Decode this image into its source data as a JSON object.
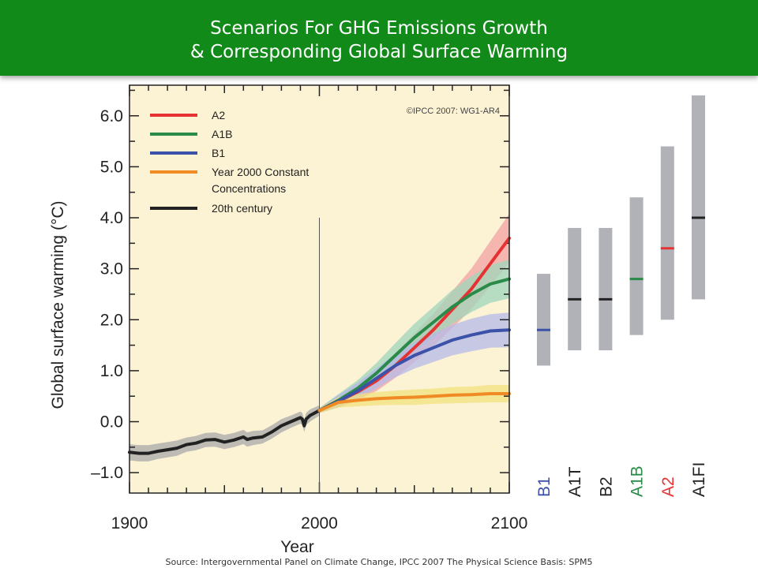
{
  "header": {
    "title_line1": "Scenarios For GHG Emissions Growth",
    "title_line2": "& Corresponding Global Surface Warming"
  },
  "footer": {
    "source": "Source: Intergovernmental Panel on Climate Change, IPCC 2007 The Physical Science Basis: SPM5"
  },
  "chart_data": [
    {
      "type": "line",
      "xlabel": "Year",
      "ylabel": "Global surface warming (°C)",
      "xlim": [
        1900,
        2100
      ],
      "ylim": [
        -1.4,
        6.6
      ],
      "x_ticks": [
        "1900",
        "2000",
        "2100"
      ],
      "y_ticks": [
        "6.0",
        "5.0",
        "4.0",
        "3.0",
        "2.0",
        "1.0",
        "0.0",
        "–1.0"
      ],
      "annotation": "©IPCC  2007: WG1-AR4",
      "background": "#fcf2d4",
      "reference_line_year": 2000,
      "legend_position": "top-left",
      "legend": [
        {
          "label": "A2",
          "color": "#e63232"
        },
        {
          "label": "A1B",
          "color": "#2a8a48"
        },
        {
          "label": "B1",
          "color": "#3c52a8"
        },
        {
          "label": "Year 2000 Constant",
          "label2": "Concentrations",
          "color": "#f08a24"
        },
        {
          "label": "20th century",
          "color": "#222222"
        }
      ],
      "series": [
        {
          "name": "20th century",
          "color": "#222222",
          "band_color": "#a8a8a8",
          "x": [
            1900,
            1905,
            1910,
            1915,
            1920,
            1925,
            1930,
            1935,
            1940,
            1945,
            1950,
            1955,
            1960,
            1962,
            1965,
            1970,
            1975,
            1980,
            1985,
            1990,
            1991,
            1992,
            1993,
            1995,
            2000
          ],
          "y": [
            -0.6,
            -0.62,
            -0.62,
            -0.58,
            -0.55,
            -0.52,
            -0.45,
            -0.42,
            -0.36,
            -0.35,
            -0.4,
            -0.36,
            -0.3,
            -0.35,
            -0.32,
            -0.3,
            -0.2,
            -0.08,
            0.0,
            0.08,
            0.05,
            -0.08,
            0.05,
            0.12,
            0.22
          ],
          "band": [
            0.16,
            0.16,
            0.16,
            0.15,
            0.15,
            0.15,
            0.14,
            0.14,
            0.14,
            0.14,
            0.14,
            0.14,
            0.14,
            0.14,
            0.14,
            0.13,
            0.13,
            0.13,
            0.12,
            0.12,
            0.12,
            0.12,
            0.12,
            0.12,
            0.1
          ]
        },
        {
          "name": "A2",
          "color": "#e63232",
          "band_color": "#f3a2a4",
          "x": [
            2000,
            2010,
            2020,
            2030,
            2040,
            2050,
            2060,
            2070,
            2080,
            2090,
            2100
          ],
          "y": [
            0.22,
            0.4,
            0.58,
            0.8,
            1.1,
            1.45,
            1.8,
            2.2,
            2.6,
            3.1,
            3.6
          ],
          "band": [
            0.05,
            0.12,
            0.16,
            0.2,
            0.24,
            0.28,
            0.32,
            0.36,
            0.4,
            0.44,
            0.48
          ]
        },
        {
          "name": "A1B",
          "color": "#2a8a48",
          "band_color": "#9fd5bb",
          "x": [
            2000,
            2010,
            2020,
            2030,
            2040,
            2050,
            2060,
            2070,
            2080,
            2090,
            2100
          ],
          "y": [
            0.22,
            0.42,
            0.65,
            0.95,
            1.3,
            1.65,
            1.95,
            2.25,
            2.5,
            2.7,
            2.8
          ],
          "band": [
            0.05,
            0.12,
            0.16,
            0.2,
            0.24,
            0.27,
            0.3,
            0.33,
            0.35,
            0.37,
            0.38
          ]
        },
        {
          "name": "B1",
          "color": "#3c52a8",
          "band_color": "#b6b9e8",
          "x": [
            2000,
            2010,
            2020,
            2030,
            2040,
            2050,
            2060,
            2070,
            2080,
            2090,
            2100
          ],
          "y": [
            0.22,
            0.4,
            0.6,
            0.85,
            1.1,
            1.3,
            1.45,
            1.6,
            1.7,
            1.78,
            1.8
          ],
          "band": [
            0.05,
            0.12,
            0.16,
            0.2,
            0.23,
            0.26,
            0.28,
            0.3,
            0.32,
            0.33,
            0.34
          ]
        },
        {
          "name": "Year 2000 Constant Concentrations",
          "color": "#f08a24",
          "band_color": "#f1e17e",
          "x": [
            2000,
            2010,
            2020,
            2030,
            2040,
            2050,
            2060,
            2070,
            2080,
            2090,
            2100
          ],
          "y": [
            0.22,
            0.38,
            0.42,
            0.45,
            0.47,
            0.48,
            0.5,
            0.52,
            0.53,
            0.55,
            0.55
          ],
          "band": [
            0.05,
            0.1,
            0.12,
            0.13,
            0.14,
            0.15,
            0.15,
            0.16,
            0.16,
            0.17,
            0.17
          ]
        }
      ]
    },
    {
      "type": "bar",
      "title": "",
      "ylim": [
        -1.4,
        6.6
      ],
      "bars": [
        {
          "name": "B1",
          "low": 1.1,
          "high": 2.9,
          "best": 1.8,
          "label_color": "#3c52a8",
          "best_color": "#3c52a8"
        },
        {
          "name": "A1T",
          "low": 1.4,
          "high": 3.8,
          "best": 2.4,
          "label_color": "#222222",
          "best_color": "#222222"
        },
        {
          "name": "B2",
          "low": 1.4,
          "high": 3.8,
          "best": 2.4,
          "label_color": "#222222",
          "best_color": "#222222"
        },
        {
          "name": "A1B",
          "low": 1.7,
          "high": 4.4,
          "best": 2.8,
          "label_color": "#2a8a48",
          "best_color": "#2a8a48"
        },
        {
          "name": "A2",
          "low": 2.0,
          "high": 5.4,
          "best": 3.4,
          "label_color": "#e63232",
          "best_color": "#e63232"
        },
        {
          "name": "A1FI",
          "low": 2.4,
          "high": 6.4,
          "best": 4.0,
          "label_color": "#222222",
          "best_color": "#222222"
        }
      ],
      "bar_color": "#b0b2b8"
    }
  ]
}
